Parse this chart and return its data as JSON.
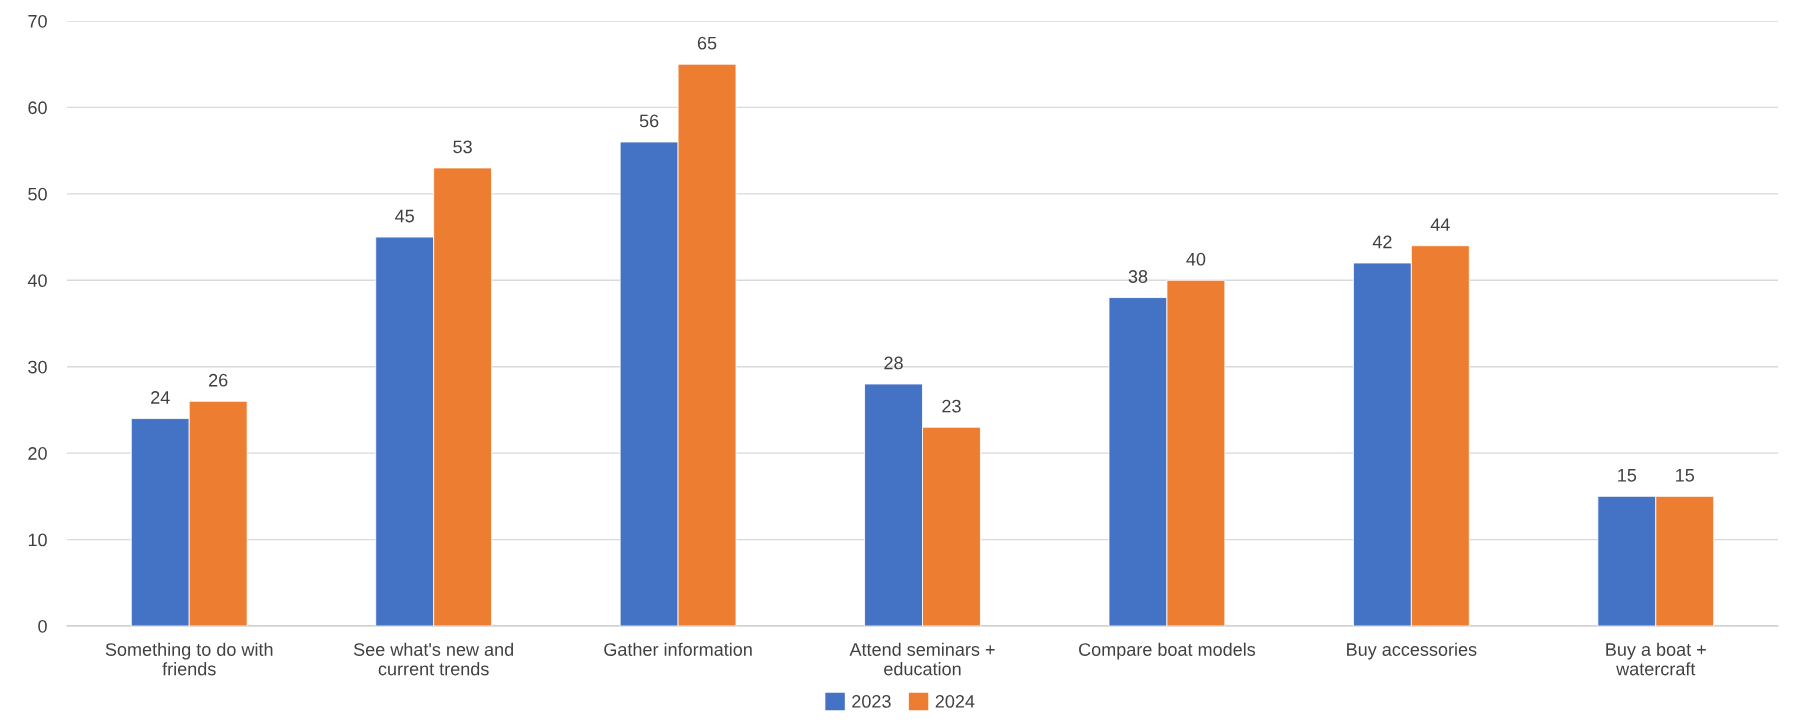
{
  "chart_data": {
    "type": "bar",
    "categories": [
      "Something to do with friends",
      "See what's new and current trends",
      "Gather information",
      "Attend seminars + education",
      "Compare boat models",
      "Buy accessories",
      "Buy a boat + watercraft"
    ],
    "series": [
      {
        "name": "2023",
        "color": "#4472c4",
        "values": [
          24,
          45,
          56,
          28,
          38,
          42,
          15
        ]
      },
      {
        "name": "2024",
        "color": "#ed7d31",
        "values": [
          26,
          53,
          65,
          23,
          40,
          44,
          15
        ]
      }
    ],
    "ylim": [
      0,
      70
    ],
    "yticks": [
      0,
      10,
      20,
      30,
      40,
      50,
      60,
      70
    ],
    "grid": "y",
    "legend": "bottom",
    "data_labels": true
  }
}
